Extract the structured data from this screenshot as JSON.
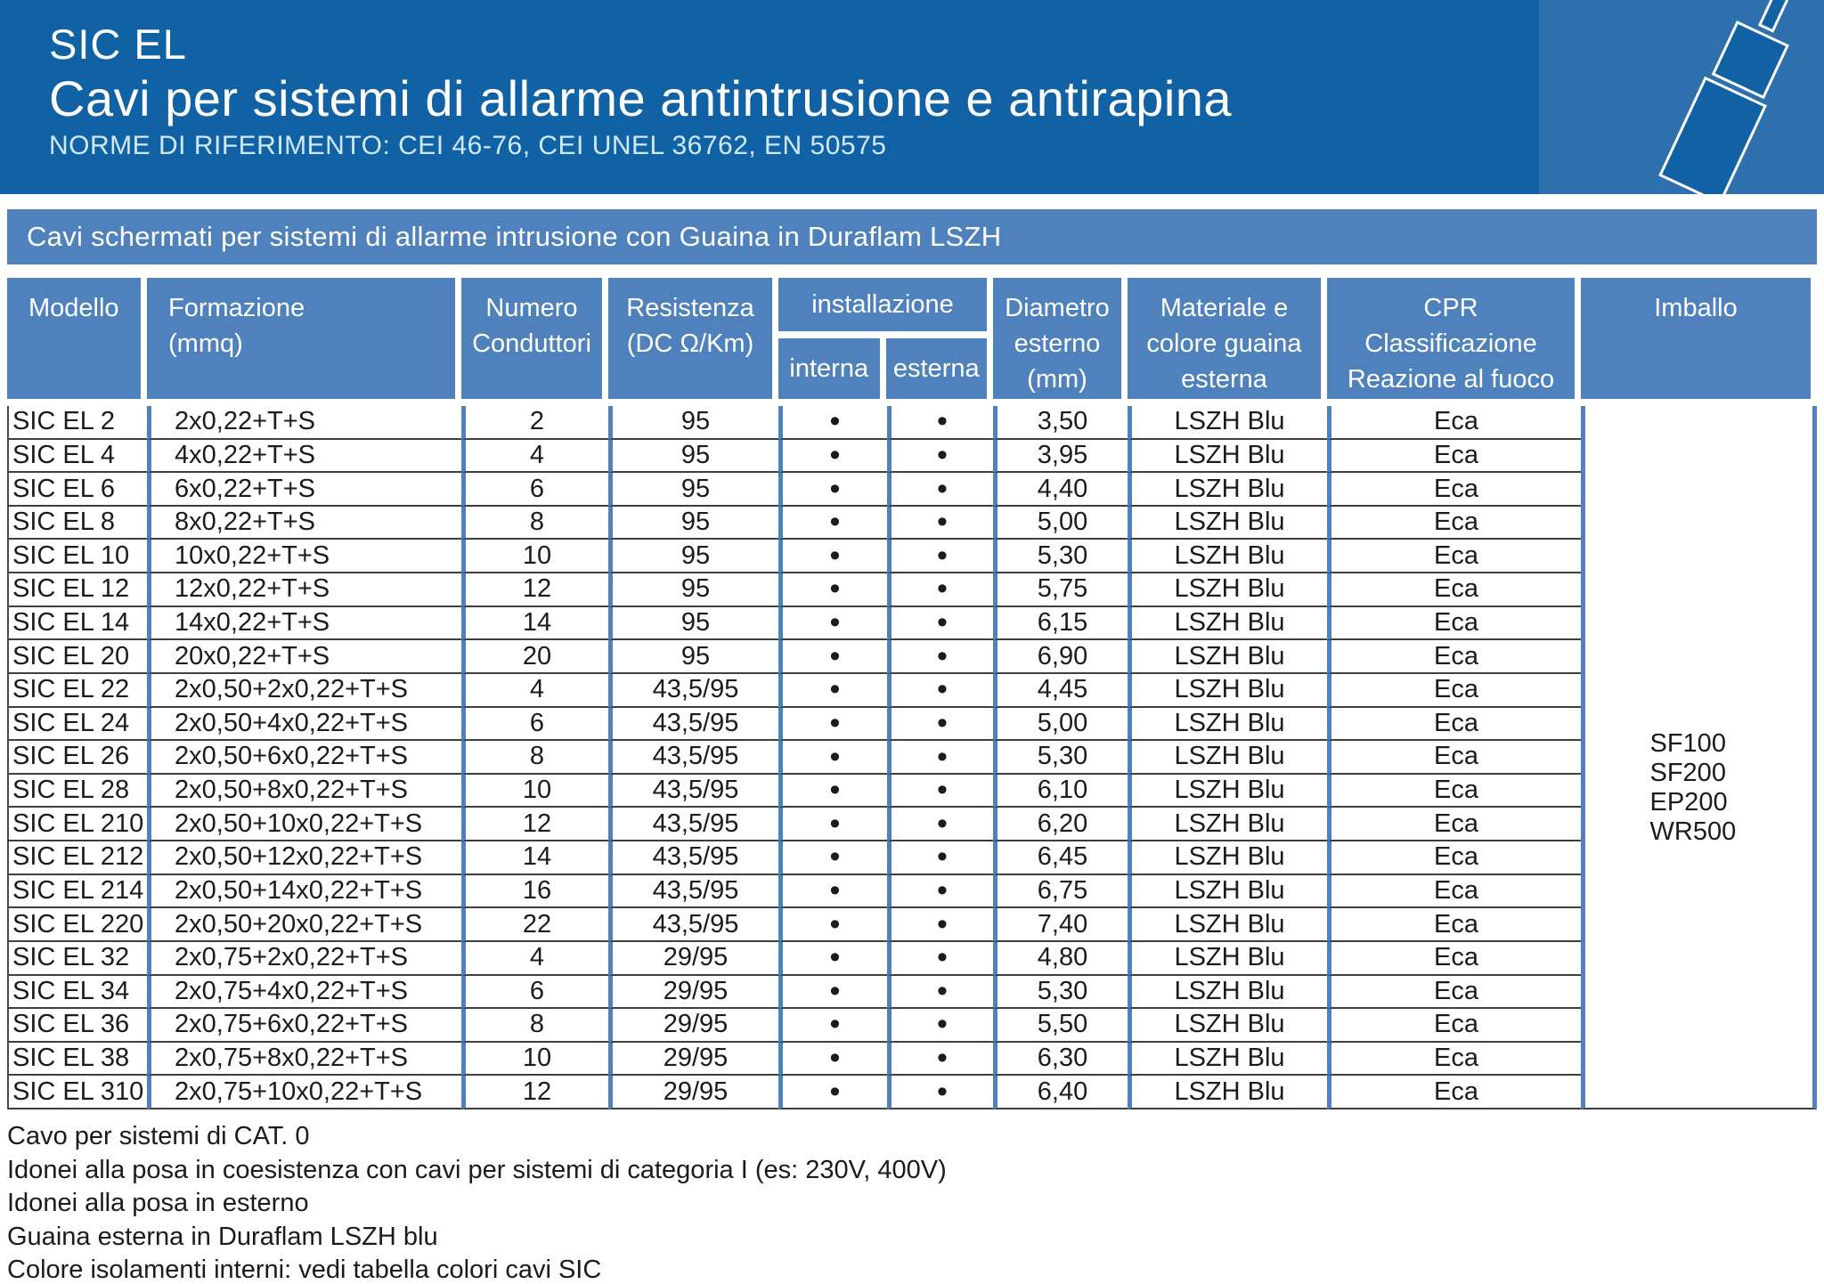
{
  "header": {
    "brand": "SIC EL",
    "title": "Cavi per sistemi di allarme antintrusione e antirapina",
    "norms": "NORME DI RIFERIMENTO: CEI 46-76, CEI UNEL 36762, EN 50575"
  },
  "banner": {
    "text": "Cavi schermati per sistemi di allarme intrusione con Guaina in Duraflam LSZH"
  },
  "table": {
    "columns": {
      "modello": "Modello",
      "formazione": "Formazione\n(mmq)",
      "numero": "Numero\nConduttori",
      "resistenza": "Resistenza\n(DC Ω/Km)",
      "installazione": "installazione",
      "interna": "interna",
      "esterna": "esterna",
      "diametro": "Diametro\nesterno\n(mm)",
      "materiale": "Materiale e\ncolore guaina\nesterna",
      "cpr": "CPR\nClassificazione\nReazione al fuoco",
      "imballo": "Imballo"
    },
    "rows": [
      [
        "SIC EL 2",
        "2x0,22+T+S",
        "2",
        "95",
        "•",
        "•",
        "3,50",
        "LSZH Blu",
        "Eca"
      ],
      [
        "SIC EL 4",
        "4x0,22+T+S",
        "4",
        "95",
        "•",
        "•",
        "3,95",
        "LSZH Blu",
        "Eca"
      ],
      [
        "SIC EL 6",
        "6x0,22+T+S",
        "6",
        "95",
        "•",
        "•",
        "4,40",
        "LSZH Blu",
        "Eca"
      ],
      [
        "SIC EL 8",
        "8x0,22+T+S",
        "8",
        "95",
        "•",
        "•",
        "5,00",
        "LSZH Blu",
        "Eca"
      ],
      [
        "SIC EL 10",
        "10x0,22+T+S",
        "10",
        "95",
        "•",
        "•",
        "5,30",
        "LSZH Blu",
        "Eca"
      ],
      [
        "SIC EL 12",
        "12x0,22+T+S",
        "12",
        "95",
        "•",
        "•",
        "5,75",
        "LSZH Blu",
        "Eca"
      ],
      [
        "SIC EL 14",
        "14x0,22+T+S",
        "14",
        "95",
        "•",
        "•",
        "6,15",
        "LSZH Blu",
        "Eca"
      ],
      [
        "SIC EL 20",
        "20x0,22+T+S",
        "20",
        "95",
        "•",
        "•",
        "6,90",
        "LSZH Blu",
        "Eca"
      ],
      [
        "SIC EL 22",
        "2x0,50+2x0,22+T+S",
        "4",
        "43,5/95",
        "•",
        "•",
        "4,45",
        "LSZH Blu",
        "Eca"
      ],
      [
        "SIC EL 24",
        "2x0,50+4x0,22+T+S",
        "6",
        "43,5/95",
        "•",
        "•",
        "5,00",
        "LSZH Blu",
        "Eca"
      ],
      [
        "SIC EL 26",
        "2x0,50+6x0,22+T+S",
        "8",
        "43,5/95",
        "•",
        "•",
        "5,30",
        "LSZH Blu",
        "Eca"
      ],
      [
        "SIC EL 28",
        "2x0,50+8x0,22+T+S",
        "10",
        "43,5/95",
        "•",
        "•",
        "6,10",
        "LSZH Blu",
        "Eca"
      ],
      [
        "SIC EL 210",
        "2x0,50+10x0,22+T+S",
        "12",
        "43,5/95",
        "•",
        "•",
        "6,20",
        "LSZH Blu",
        "Eca"
      ],
      [
        "SIC EL 212",
        "2x0,50+12x0,22+T+S",
        "14",
        "43,5/95",
        "•",
        "•",
        "6,45",
        "LSZH Blu",
        "Eca"
      ],
      [
        "SIC EL 214",
        "2x0,50+14x0,22+T+S",
        "16",
        "43,5/95",
        "•",
        "•",
        "6,75",
        "LSZH Blu",
        "Eca"
      ],
      [
        "SIC EL 220",
        "2x0,50+20x0,22+T+S",
        "22",
        "43,5/95",
        "•",
        "•",
        "7,40",
        "LSZH Blu",
        "Eca"
      ],
      [
        "SIC EL 32",
        "2x0,75+2x0,22+T+S",
        "4",
        "29/95",
        "•",
        "•",
        "4,80",
        "LSZH Blu",
        "Eca"
      ],
      [
        "SIC EL 34",
        "2x0,75+4x0,22+T+S",
        "6",
        "29/95",
        "•",
        "•",
        "5,30",
        "LSZH Blu",
        "Eca"
      ],
      [
        "SIC EL 36",
        "2x0,75+6x0,22+T+S",
        "8",
        "29/95",
        "•",
        "•",
        "5,50",
        "LSZH Blu",
        "Eca"
      ],
      [
        "SIC EL 38",
        "2x0,75+8x0,22+T+S",
        "10",
        "29/95",
        "•",
        "•",
        "6,30",
        "LSZH Blu",
        "Eca"
      ],
      [
        "SIC EL 310",
        "2x0,75+10x0,22+T+S",
        "12",
        "29/95",
        "•",
        "•",
        "6,40",
        "LSZH Blu",
        "Eca"
      ]
    ],
    "imballo_values": [
      "SF100",
      "SF200",
      "EP200",
      "WR500"
    ]
  },
  "notes": [
    "Cavo per sistemi di CAT. 0",
    "Idonei alla posa in coesistenza con cavi per sistemi di categoria I (es: 230V, 400V)",
    "Idonei alla posa in esterno",
    "Guaina esterna in Duraflam LSZH blu",
    "Colore isolamenti interni: vedi tabella colori cavi SIC"
  ],
  "colors": {
    "header_blue": "#1161a5",
    "panel_blue": "#2d70ad",
    "accent_blue": "#4f81bd",
    "row_line": "#3f3f3f",
    "norms_text": "#cfe9fa"
  }
}
